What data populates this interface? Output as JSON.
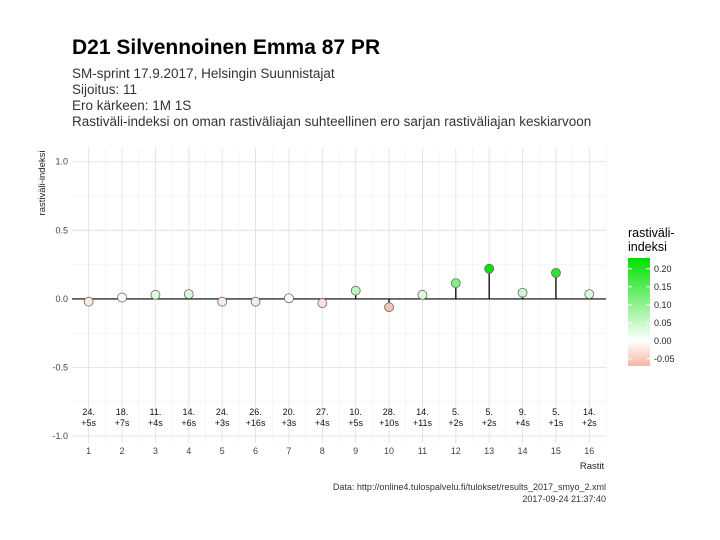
{
  "header": {
    "title": "D21 Silvennoinen Emma 87 PR",
    "subtitle_lines": [
      "SM-sprint 17.9.2017, Helsingin Suunnistajat",
      "Sijoitus: 11",
      "Ero kärkeen: 1M 1S",
      "Rastiväli-indeksi on oman rastiväliajan suhteellinen ero sarjan rastiväliajan keskiarvoon"
    ]
  },
  "caption": {
    "source": "Data: http://online4.tulospalvelu.fi/tulokset/results_2017_smyo_2.xml",
    "timestamp": "2017-09-24 21:37:40"
  },
  "chart_data": {
    "type": "lollipop",
    "xlabel": "Rastit",
    "ylabel": "rastiväli-indeksi",
    "xlim": [
      0.5,
      16.5
    ],
    "ylim": [
      -1.05,
      1.1
    ],
    "x_ticks": [
      1,
      2,
      3,
      4,
      5,
      6,
      7,
      8,
      9,
      10,
      11,
      12,
      13,
      14,
      15,
      16
    ],
    "y_ticks": [
      -1.0,
      -0.5,
      0.0,
      0.5,
      1.0
    ],
    "y_tick_labels": [
      "-1.0",
      "-0.5",
      "0.0",
      "0.5",
      "1.0"
    ],
    "grid": true,
    "points": [
      {
        "x": 1,
        "y": -0.02,
        "rank": "24.",
        "diff": "+5s"
      },
      {
        "x": 2,
        "y": 0.01,
        "rank": "18.",
        "diff": "+7s"
      },
      {
        "x": 3,
        "y": 0.03,
        "rank": "11.",
        "diff": "+4s"
      },
      {
        "x": 4,
        "y": 0.035,
        "rank": "14.",
        "diff": "+6s"
      },
      {
        "x": 5,
        "y": -0.02,
        "rank": "24.",
        "diff": "+3s"
      },
      {
        "x": 6,
        "y": -0.02,
        "rank": "26.",
        "diff": "+16s"
      },
      {
        "x": 7,
        "y": 0.005,
        "rank": "20.",
        "diff": "+3s"
      },
      {
        "x": 8,
        "y": -0.03,
        "rank": "27.",
        "diff": "+4s"
      },
      {
        "x": 9,
        "y": 0.06,
        "rank": "10.",
        "diff": "+5s"
      },
      {
        "x": 10,
        "y": -0.06,
        "rank": "28.",
        "diff": "+10s"
      },
      {
        "x": 11,
        "y": 0.03,
        "rank": "14.",
        "diff": "+11s"
      },
      {
        "x": 12,
        "y": 0.115,
        "rank": "5.",
        "diff": "+2s"
      },
      {
        "x": 13,
        "y": 0.22,
        "rank": "5.",
        "diff": "+2s"
      },
      {
        "x": 14,
        "y": 0.045,
        "rank": "9.",
        "diff": "+4s"
      },
      {
        "x": 15,
        "y": 0.19,
        "rank": "5.",
        "diff": "+1s"
      },
      {
        "x": 16,
        "y": 0.035,
        "rank": "14.",
        "diff": "+2s"
      }
    ],
    "legend": {
      "title_lines": [
        "rastiväli-",
        "indeksi"
      ],
      "placement": "right",
      "range": [
        -0.07,
        0.23
      ],
      "ticks": [
        0.2,
        0.15,
        0.1,
        0.05,
        0.0,
        -0.05
      ],
      "tick_labels": [
        "0.20",
        "0.15",
        "0.10",
        "0.05",
        "0.00",
        "-0.05"
      ],
      "color_high": "#00e000",
      "color_mid": "#ffffff",
      "color_low": "#f4b8a4"
    }
  }
}
